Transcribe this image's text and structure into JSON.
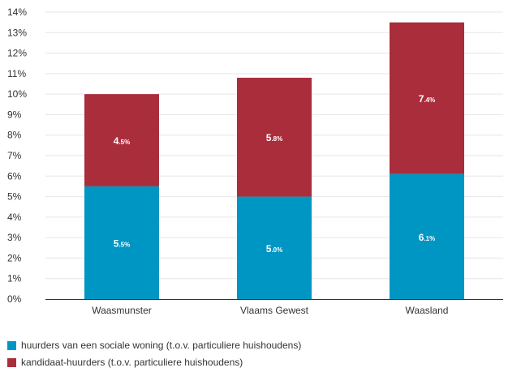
{
  "chart_data": {
    "type": "bar",
    "stacked": true,
    "categories": [
      "Waasmunster",
      "Vlaams Gewest",
      "Waasland"
    ],
    "series": [
      {
        "name": "huurders van een sociale woning (t.o.v. particuliere huishoudens)",
        "values": [
          5.5,
          5.0,
          6.1
        ],
        "labels": [
          "5.5%",
          "5.0%",
          "6.1%"
        ],
        "color": "#0096C3"
      },
      {
        "name": "kandidaat-huurders (t.o.v. particuliere huishoudens)",
        "values": [
          4.5,
          5.8,
          7.4
        ],
        "labels": [
          "4.5%",
          "5.8%",
          "7.4%"
        ],
        "color": "#AA2D3C"
      }
    ],
    "ylim": [
      0,
      14
    ],
    "yticks": [
      0,
      1,
      2,
      3,
      4,
      5,
      6,
      7,
      8,
      9,
      10,
      11,
      12,
      13,
      14
    ],
    "ytick_labels": [
      "0%",
      "1%",
      "2%",
      "3%",
      "4%",
      "5%",
      "6%",
      "7%",
      "8%",
      "9%",
      "10%",
      "11%",
      "12%",
      "13%",
      "14%"
    ],
    "grid": true,
    "legend_position": "bottom-left",
    "title": "",
    "xlabel": "",
    "ylabel": ""
  },
  "colors": {
    "grid": "#E6E6E6",
    "axis": "#333333",
    "text": "#333333",
    "data_label": "#FFFFFF"
  }
}
